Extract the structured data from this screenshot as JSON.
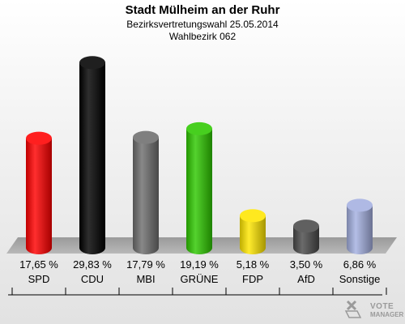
{
  "chart_data": {
    "type": "bar",
    "title": "Stadt Mülheim an der Ruhr",
    "subtitle": "Bezirksvertretungswahl 25.05.2014",
    "subtitle2": "Wahlbezirk 062",
    "categories": [
      "SPD",
      "CDU",
      "MBI",
      "GRÜNE",
      "FDP",
      "AfD",
      "Sonstige"
    ],
    "values": [
      17.65,
      29.83,
      17.79,
      19.19,
      5.18,
      3.5,
      6.86
    ],
    "value_labels": [
      "17,65 %",
      "29,83 %",
      "17,79 %",
      "19,19 %",
      "5,18 %",
      "3,50 %",
      "6,86 %"
    ],
    "colors": [
      "#ff0000",
      "#000000",
      "#6e6e6e",
      "#2ec800",
      "#ffe600",
      "#4a4a4a",
      "#a4b0e0"
    ],
    "ylim": [
      0,
      30
    ]
  },
  "watermark": {
    "line1": "VOTE",
    "line2": "MANAGER"
  }
}
